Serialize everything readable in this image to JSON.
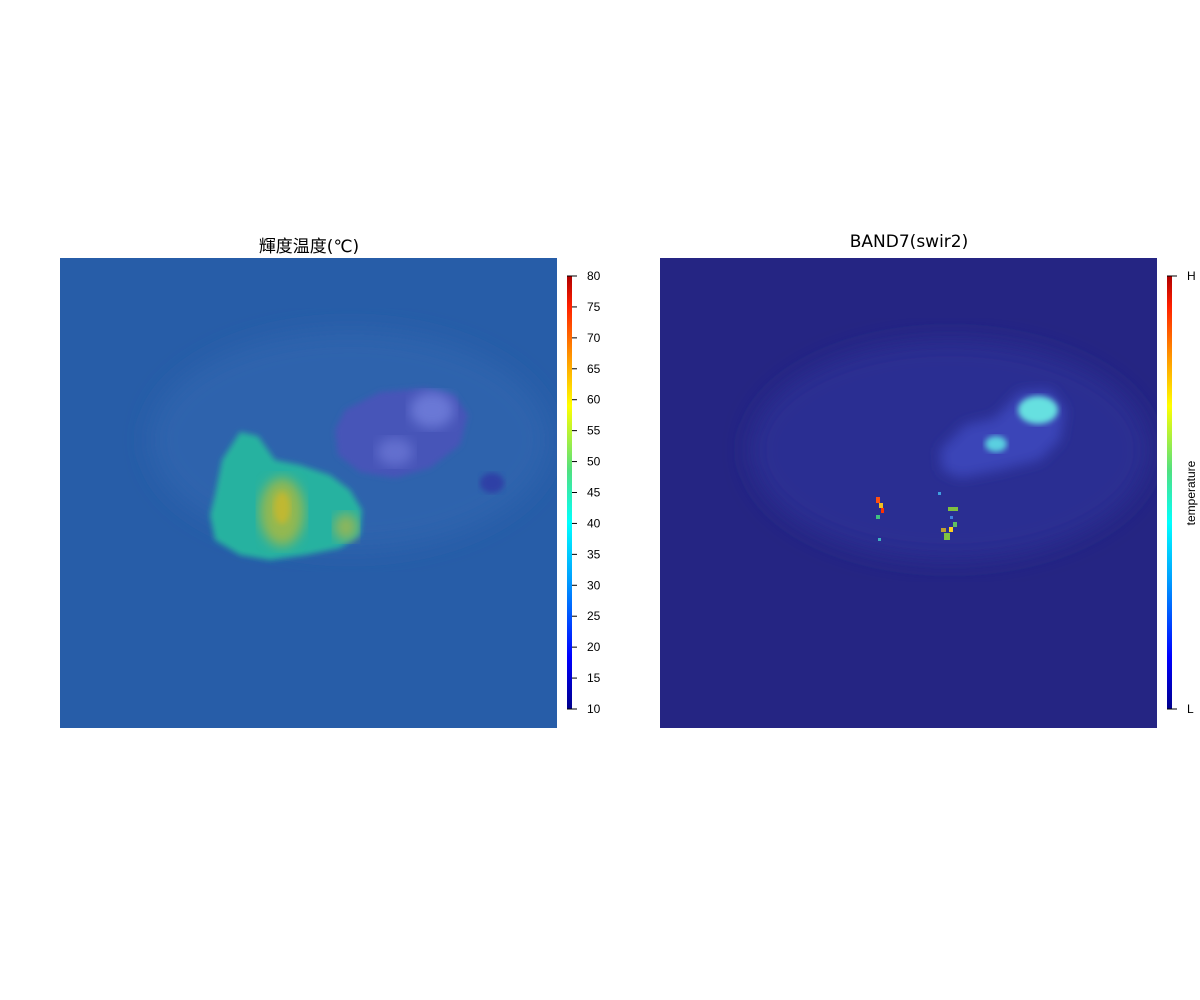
{
  "chart_data": [
    {
      "type": "heatmap",
      "title": "輝度温度(℃)",
      "colorbar": {
        "ticks": [
          10,
          15,
          20,
          25,
          30,
          35,
          40,
          45,
          50,
          55,
          60,
          65,
          70,
          75,
          80
        ],
        "range": [
          10,
          80
        ],
        "label": ""
      },
      "background_value": 23,
      "regions": [
        {
          "shape": "hot-blob",
          "value": 38
        },
        {
          "shape": "core",
          "value": 44
        },
        {
          "shape": "cloud",
          "value": 15
        }
      ]
    },
    {
      "type": "heatmap",
      "title": "BAND7(swir2)",
      "colorbar": {
        "ticks": [
          "L",
          "H"
        ],
        "range": [
          0,
          1
        ],
        "label": "temperature"
      },
      "background_value": 0.08
    }
  ],
  "colors": {
    "scale": [
      "#000080",
      "#0000ff",
      "#0080ff",
      "#00ffff",
      "#80ff80",
      "#ffff00",
      "#ff8000",
      "#ff0000",
      "#800000"
    ],
    "left_bg": "#275da8",
    "right_bg": "#252583"
  }
}
